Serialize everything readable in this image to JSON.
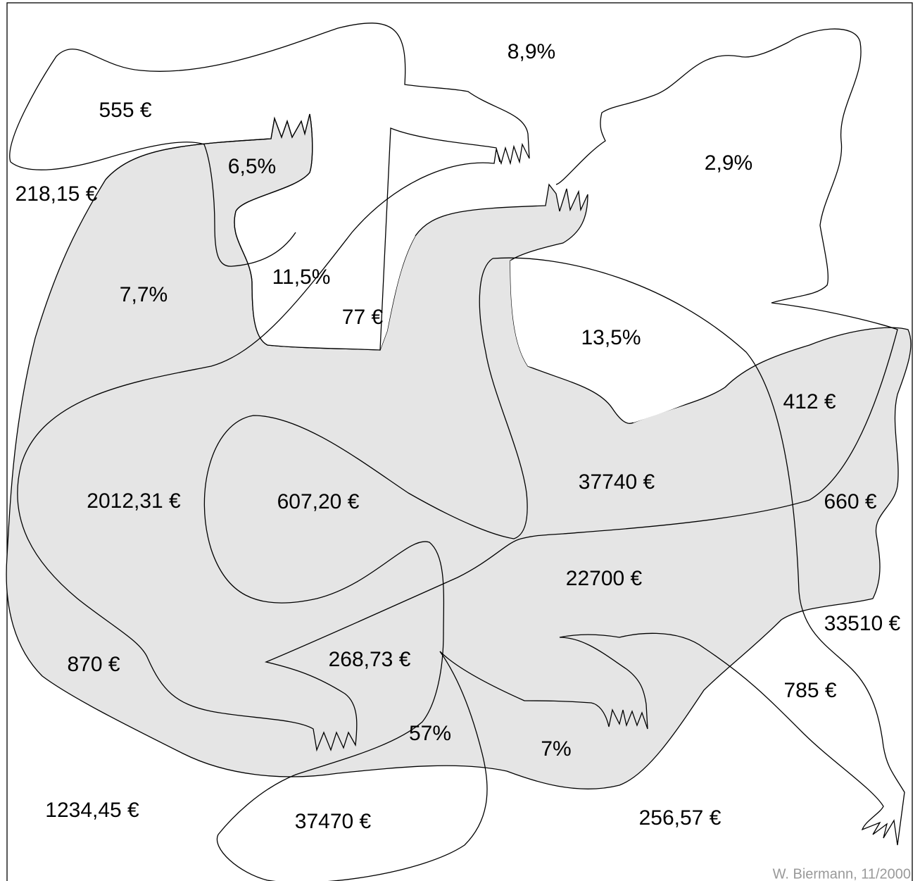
{
  "labels": [
    "8,9%",
    "555 €",
    "6,5%",
    "2,9%",
    "218,15 €",
    "7,7%",
    "11,5%",
    "77 €",
    "13,5%",
    "412 €",
    "37740 €",
    "2012,31 €",
    "607,20 €",
    "660 €",
    "22700 €",
    "33510 €",
    "870 €",
    "268,73 €",
    "785 €",
    "57%",
    "7%",
    "1234,45 €",
    "37470 €",
    "256,57 €"
  ],
  "credit": "W. Biermann, 11/2000"
}
